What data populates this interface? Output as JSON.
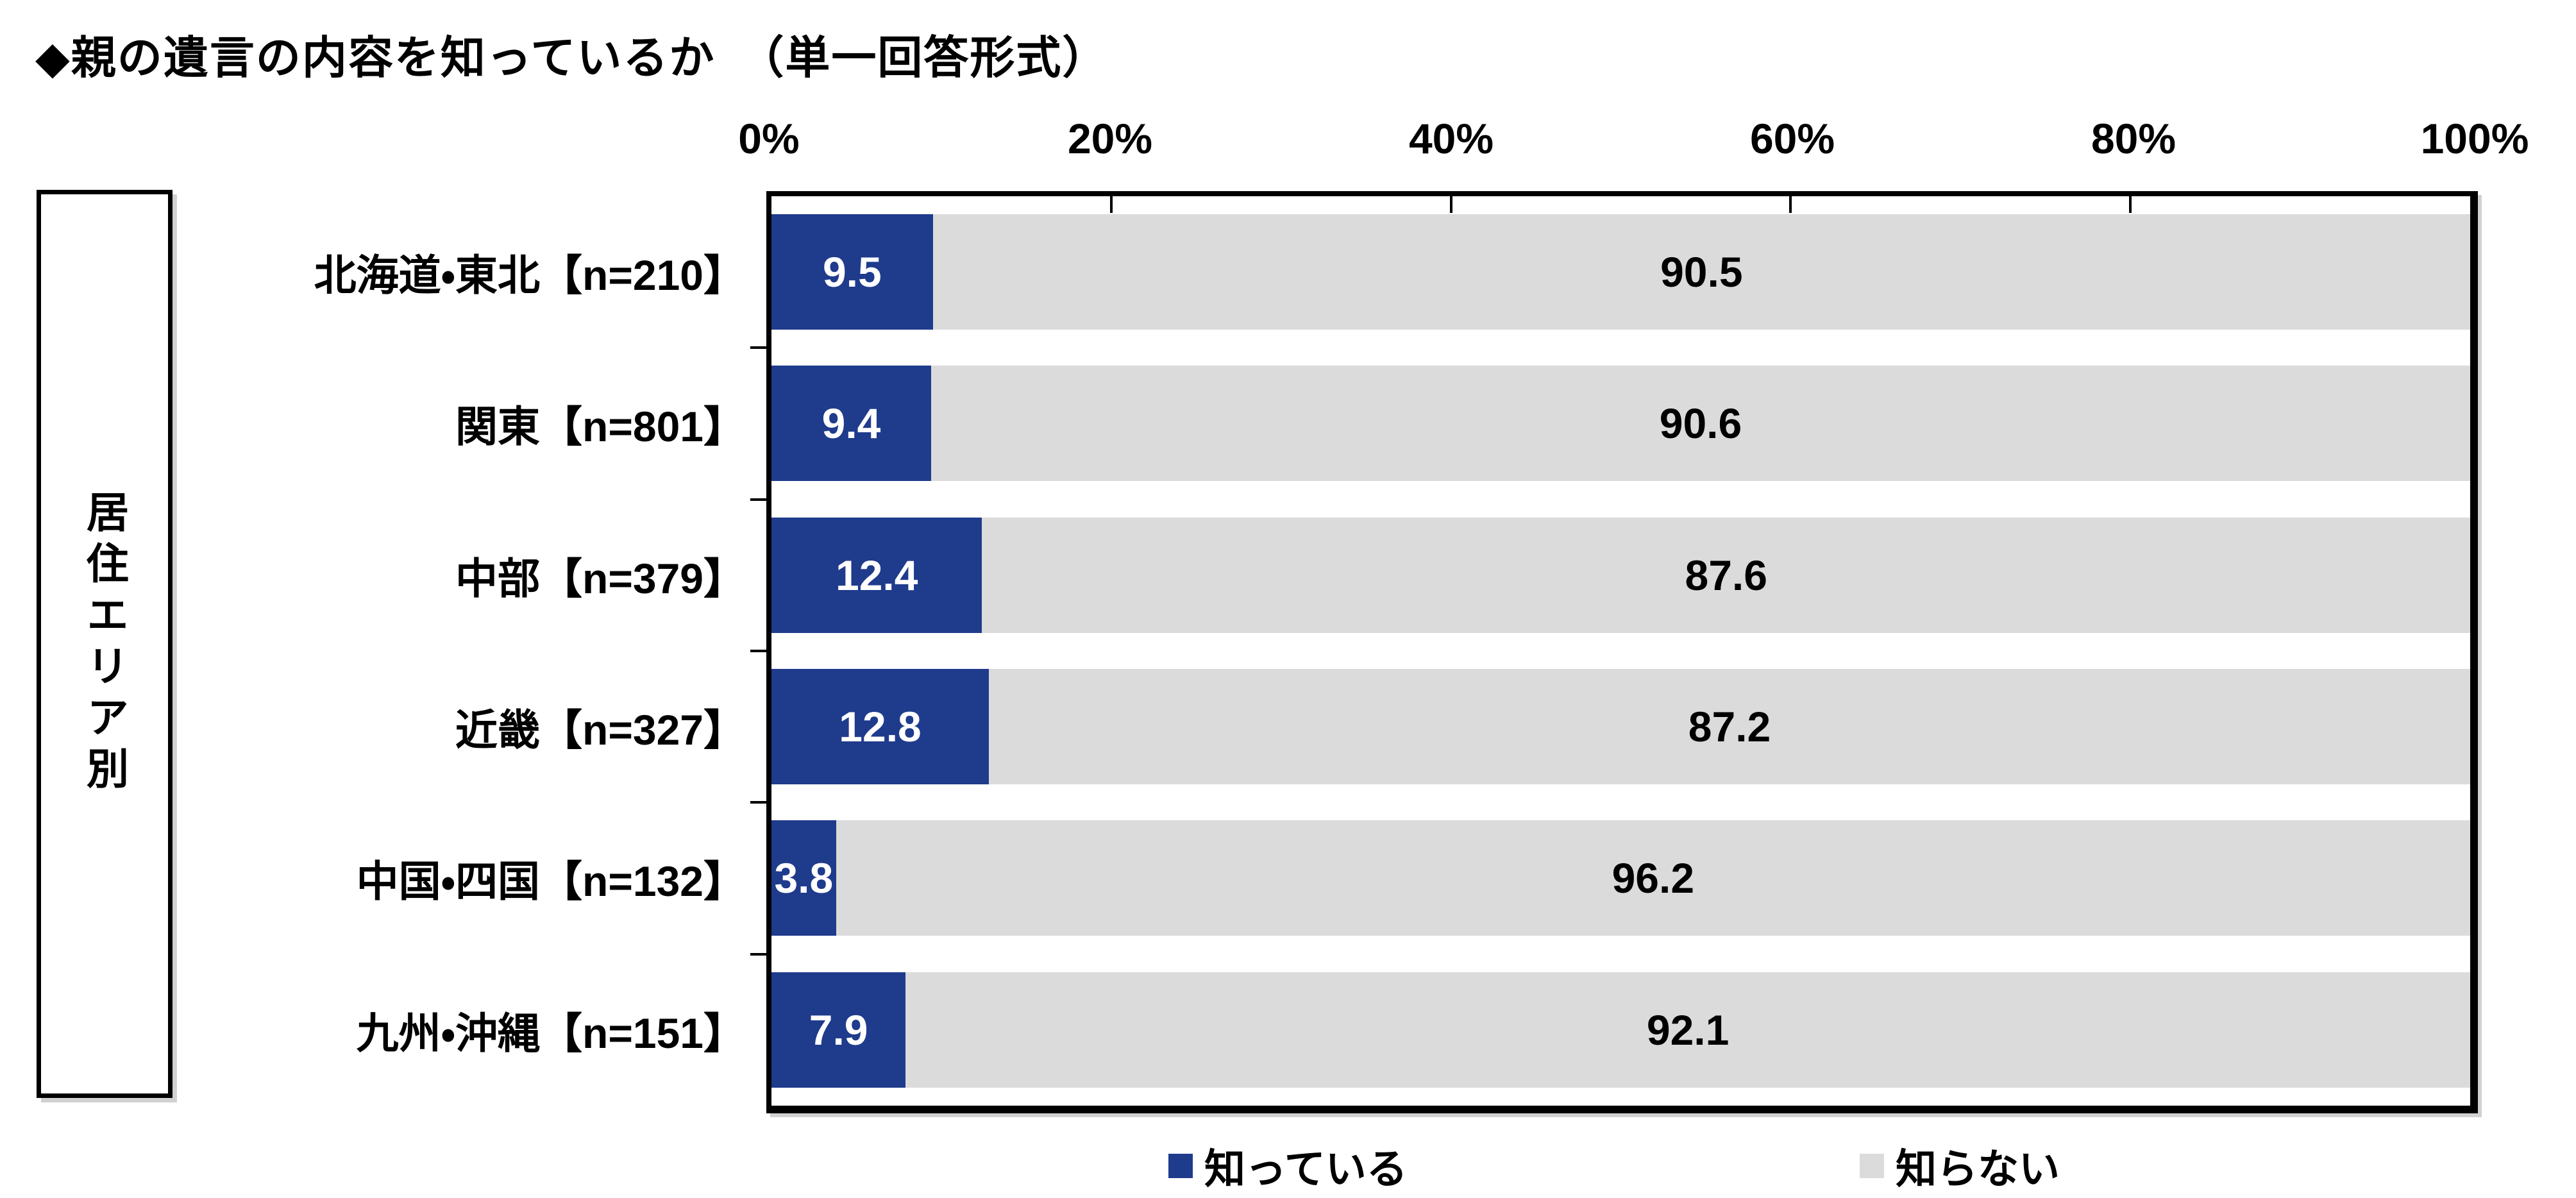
{
  "title": "◆親の遺言の内容を知っているか　（単一回答形式）",
  "group_label": "居住エリア別",
  "axis": {
    "ticks": [
      "0%",
      "20%",
      "40%",
      "60%",
      "80%",
      "100%"
    ]
  },
  "colors": {
    "know": "#1F3B8C",
    "dont": "#DBDBDB",
    "know_text": "#FFFFFF",
    "dont_text": "#000000",
    "border": "#000000"
  },
  "legend": {
    "items": [
      {
        "label": "知っている",
        "color": "#1F3B8C"
      },
      {
        "label": "知らない",
        "color": "#DBDBDB"
      }
    ]
  },
  "rows": [
    {
      "label": "北海道・東北【n=210】",
      "know_label": "9.5",
      "dont_label": "90.5",
      "know_w": "9.5%",
      "dont_w": "90.5%"
    },
    {
      "label": "関東【n=801】",
      "know_label": "9.4",
      "dont_label": "90.6",
      "know_w": "9.4%",
      "dont_w": "90.6%"
    },
    {
      "label": "中部【n=379】",
      "know_label": "12.4",
      "dont_label": "87.6",
      "know_w": "12.4%",
      "dont_w": "87.6%"
    },
    {
      "label": "近畿【n=327】",
      "know_label": "12.8",
      "dont_label": "87.2",
      "know_w": "12.8%",
      "dont_w": "87.2%"
    },
    {
      "label": "中国・四国【n=132】",
      "know_label": "3.8",
      "dont_label": "96.2",
      "know_w": "3.8%",
      "dont_w": "96.2%"
    },
    {
      "label": "九州・沖縄【n=151】",
      "know_label": "7.9",
      "dont_label": "92.1",
      "know_w": "7.9%",
      "dont_w": "92.1%"
    }
  ],
  "chart_data": {
    "type": "bar",
    "orientation": "horizontal",
    "stacked": true,
    "title": "◆親の遺言の内容を知っているか（単一回答形式）",
    "group_axis_label": "居住エリア別",
    "categories": [
      "北海道・東北【n=210】",
      "関東【n=801】",
      "中部【n=379】",
      "近畿【n=327】",
      "中国・四国【n=132】",
      "九州・沖縄【n=151】"
    ],
    "series": [
      {
        "name": "知っている",
        "color": "#1F3B8C",
        "values": [
          9.5,
          9.4,
          12.4,
          12.8,
          3.8,
          7.9
        ]
      },
      {
        "name": "知らない",
        "color": "#DBDBDB",
        "values": [
          90.5,
          90.6,
          87.6,
          87.2,
          96.2,
          92.1
        ]
      }
    ],
    "xlim": [
      0,
      100
    ],
    "x_ticks": [
      "0%",
      "20%",
      "40%",
      "60%",
      "80%",
      "100%"
    ],
    "x_tick_position": "top",
    "grid": false,
    "legend_position": "bottom",
    "value_labels": "inside"
  }
}
